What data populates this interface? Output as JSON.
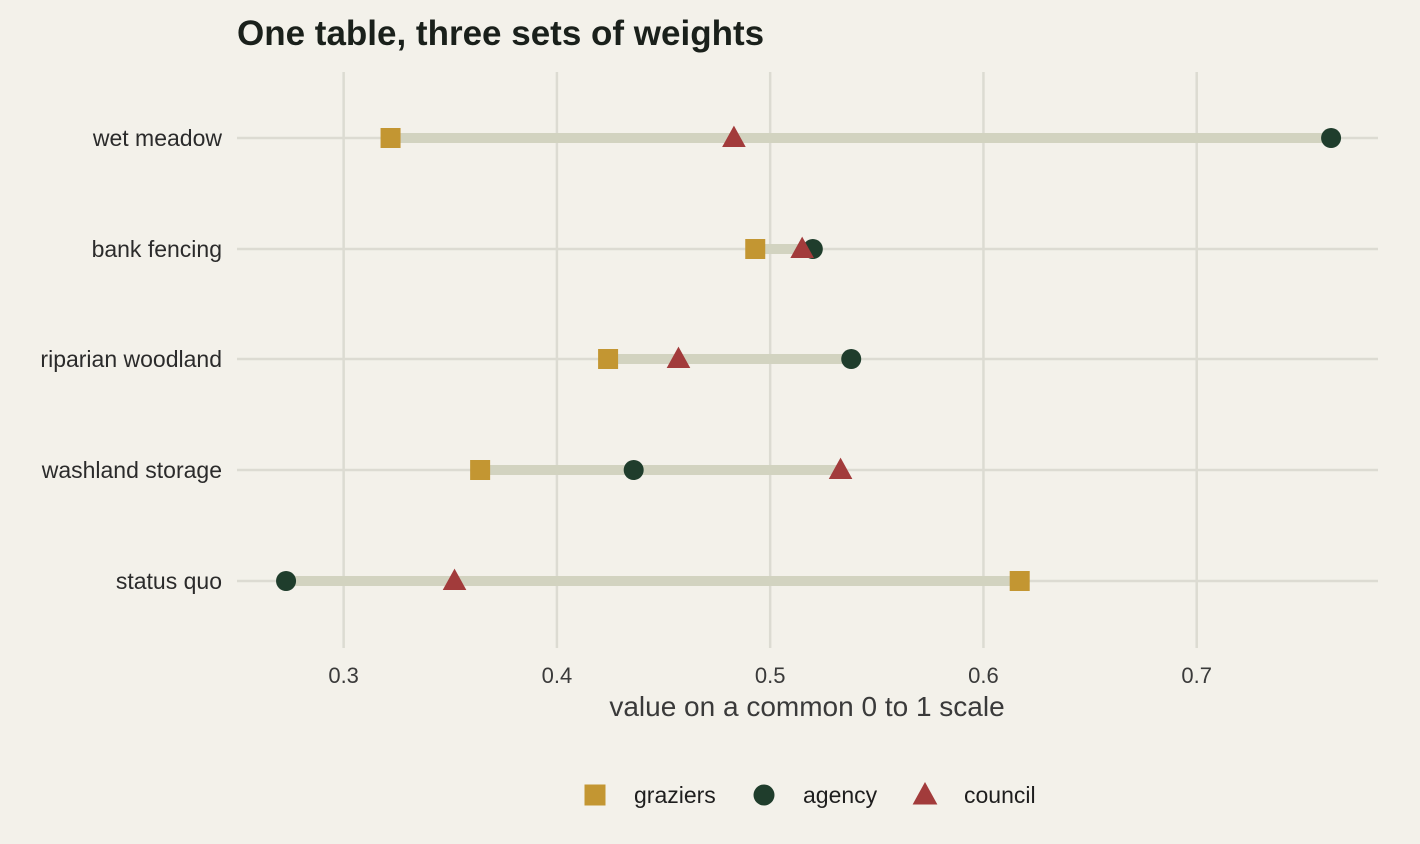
{
  "chart_data": {
    "type": "dot-range",
    "title": "One table, three sets of weights",
    "xlabel": "value on a common 0 to 1 scale",
    "ylabel": "",
    "xlim": [
      0.25,
      0.785
    ],
    "xticks": [
      0.3,
      0.4,
      0.5,
      0.6,
      0.7
    ],
    "xtick_labels": [
      "0.3",
      "0.4",
      "0.5",
      "0.6",
      "0.7"
    ],
    "grid": true,
    "legend_position": "bottom",
    "categories": [
      "wet meadow",
      "bank fencing",
      "riparian woodland",
      "washland storage",
      "status quo"
    ],
    "series": [
      {
        "name": "graziers",
        "marker": "square",
        "color": "#c39632",
        "values": [
          0.322,
          0.493,
          0.424,
          0.364,
          0.617
        ]
      },
      {
        "name": "agency",
        "marker": "circle",
        "color": "#1f3d2c",
        "values": [
          0.763,
          0.52,
          0.538,
          0.436,
          0.273
        ]
      },
      {
        "name": "council",
        "marker": "triangle",
        "color": "#a23b3b",
        "values": [
          0.483,
          0.515,
          0.457,
          0.533,
          0.352
        ]
      }
    ],
    "range_color": "#d2d3c0",
    "grid_color": "#dcdbd2"
  }
}
